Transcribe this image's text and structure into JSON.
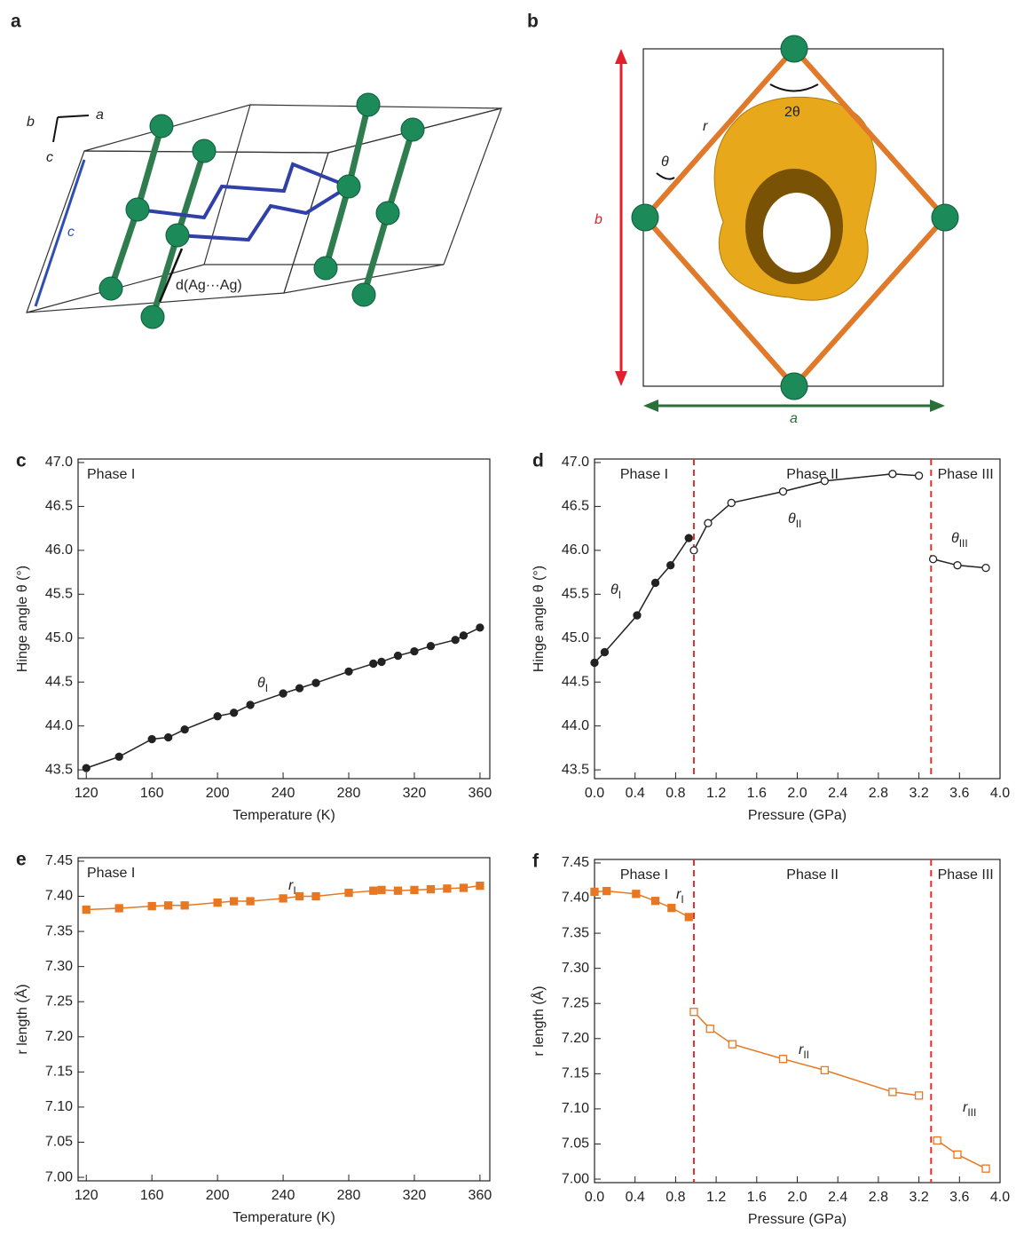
{
  "diagrams": {
    "a": {
      "panel": "a",
      "axis_labels": [
        "b",
        "a",
        "c"
      ],
      "c_label": "c",
      "distance_label": "d(Ag···Ag)"
    },
    "b": {
      "panel": "b",
      "r_label": "r",
      "theta_label": "θ",
      "two_theta_label": "2θ",
      "b_label": "b",
      "a_label": "a"
    }
  },
  "chart_data": [
    {
      "type": "line",
      "panel": "c",
      "x_label": "Temperature (K)",
      "y_label": "Hinge angle θ (°)",
      "xlim": [
        115,
        366
      ],
      "ylim": [
        43.4,
        47.04
      ],
      "xticks": [
        120,
        160,
        200,
        240,
        280,
        320,
        360
      ],
      "yticks": [
        43.5,
        {
          "value": 44,
          "label": "44.0"
        },
        44.5,
        {
          "value": 45,
          "label": "45.0"
        },
        45.5,
        {
          "value": 46,
          "label": "46.0"
        },
        46.5,
        {
          "value": 47,
          "label": "47.0"
        }
      ],
      "phase_labels": [
        "Phase I"
      ],
      "phase_boundaries": [],
      "annotations": [
        {
          "text": "θ",
          "sub": "I"
        }
      ],
      "series": [
        {
          "color": "#222222",
          "marker": "filled_circle",
          "x": [
            120,
            140,
            160,
            170,
            180,
            200,
            210,
            220,
            240,
            250,
            260,
            280,
            295,
            300,
            310,
            320,
            330,
            345,
            350,
            360
          ],
          "values": [
            43.52,
            43.65,
            43.85,
            43.87,
            43.96,
            44.11,
            44.15,
            44.24,
            44.37,
            44.43,
            44.49,
            44.62,
            44.71,
            44.73,
            44.8,
            44.85,
            44.91,
            44.98,
            45.03,
            45.12
          ]
        }
      ]
    },
    {
      "type": "line",
      "panel": "d",
      "x_label": "Pressure (GPa)",
      "y_label": "Hinge angle θ (°)",
      "xlim": [
        0,
        4
      ],
      "ylim": [
        43.4,
        47.04
      ],
      "xticks": [
        {
          "value": 0,
          "label": "0.0"
        },
        0.4,
        0.8,
        1.2,
        1.6,
        {
          "value": 2,
          "label": "2.0"
        },
        2.4,
        2.8,
        3.2,
        3.6,
        {
          "value": 4,
          "label": "4.0"
        }
      ],
      "yticks": [
        43.5,
        {
          "value": 44,
          "label": "44.0"
        },
        44.5,
        {
          "value": 45,
          "label": "45.0"
        },
        45.5,
        {
          "value": 46,
          "label": "46.0"
        },
        46.5,
        {
          "value": 47,
          "label": "47.0"
        }
      ],
      "phase_labels": [
        "Phase I",
        "Phase II",
        "Phase III"
      ],
      "phase_boundaries": [
        0.98,
        3.32
      ],
      "boundary_color": "#e0302f",
      "annotations": [
        {
          "text": "θ",
          "sub": "I"
        },
        {
          "text": "θ",
          "sub": "II"
        },
        {
          "text": "θ",
          "sub": "III"
        }
      ],
      "series": [
        {
          "color": "#222222",
          "marker": "filled_circle",
          "x": [
            0,
            0.1,
            0.42,
            0.6,
            0.75,
            0.93
          ],
          "values": [
            44.72,
            44.84,
            45.26,
            45.63,
            45.83,
            46.14
          ]
        },
        {
          "color": "#222222",
          "marker": "open_circle",
          "x": [
            0.98,
            1.12,
            1.35,
            1.86,
            2.27,
            2.94,
            3.2
          ],
          "values": [
            46.0,
            46.31,
            46.54,
            46.67,
            46.79,
            46.87,
            46.85
          ]
        },
        {
          "color": "#222222",
          "marker": "open_circle",
          "x": [
            3.34,
            3.58,
            3.86
          ],
          "values": [
            45.9,
            45.83,
            45.8
          ]
        }
      ]
    },
    {
      "type": "line",
      "panel": "e",
      "x_label": "Temperature (K)",
      "y_label": "r length (Å)",
      "xlim": [
        115,
        366
      ],
      "ylim": [
        6.995,
        7.455
      ],
      "xticks": [
        120,
        160,
        200,
        240,
        280,
        320,
        360
      ],
      "yticks": [
        {
          "value": 7,
          "label": "7.00"
        },
        7.05,
        {
          "value": 7.1,
          "label": "7.10"
        },
        7.15,
        {
          "value": 7.2,
          "label": "7.20"
        },
        7.25,
        {
          "value": 7.3,
          "label": "7.30"
        },
        7.35,
        {
          "value": 7.4,
          "label": "7.40"
        },
        7.45
      ],
      "phase_labels": [
        "Phase I"
      ],
      "phase_boundaries": [],
      "annotations": [
        {
          "text": "r",
          "sub": "I"
        }
      ],
      "series": [
        {
          "color": "#e87722",
          "marker": "filled_square",
          "x": [
            120,
            140,
            160,
            170,
            180,
            200,
            210,
            220,
            240,
            250,
            260,
            280,
            295,
            300,
            310,
            320,
            330,
            340,
            350,
            360
          ],
          "values": [
            7.381,
            7.383,
            7.386,
            7.387,
            7.387,
            7.391,
            7.393,
            7.393,
            7.397,
            7.4,
            7.4,
            7.405,
            7.408,
            7.409,
            7.408,
            7.409,
            7.41,
            7.411,
            7.412,
            7.415
          ]
        }
      ]
    },
    {
      "type": "line",
      "panel": "f",
      "x_label": "Pressure (GPa)",
      "y_label": "r length (Å)",
      "xlim": [
        0,
        4
      ],
      "ylim": [
        6.995,
        7.455
      ],
      "xticks": [
        {
          "value": 0,
          "label": "0.0"
        },
        0.4,
        0.8,
        1.2,
        1.6,
        {
          "value": 2,
          "label": "2.0"
        },
        2.4,
        2.8,
        3.2,
        3.6,
        {
          "value": 4,
          "label": "4.0"
        }
      ],
      "yticks": [
        {
          "value": 7,
          "label": "7.00"
        },
        7.05,
        {
          "value": 7.1,
          "label": "7.10"
        },
        7.15,
        {
          "value": 7.2,
          "label": "7.20"
        },
        7.25,
        {
          "value": 7.3,
          "label": "7.30"
        },
        7.35,
        {
          "value": 7.4,
          "label": "7.40"
        },
        7.45
      ],
      "phase_labels": [
        "Phase I",
        "Phase II",
        "Phase III"
      ],
      "phase_boundaries": [
        0.98,
        3.32
      ],
      "boundary_color": "#e0302f",
      "annotations": [
        {
          "text": "r",
          "sub": "I"
        },
        {
          "text": "r",
          "sub": "II"
        },
        {
          "text": "r",
          "sub": "III"
        }
      ],
      "series": [
        {
          "color": "#e87722",
          "marker": "filled_square",
          "x": [
            0,
            0.12,
            0.41,
            0.6,
            0.76,
            0.93
          ],
          "values": [
            7.409,
            7.41,
            7.406,
            7.396,
            7.386,
            7.373
          ]
        },
        {
          "color": "#e87722",
          "marker": "open_square",
          "x": [
            0.98,
            1.14,
            1.36,
            1.86,
            2.27,
            2.94,
            3.2
          ],
          "values": [
            7.238,
            7.214,
            7.192,
            7.171,
            7.155,
            7.124,
            7.119
          ]
        },
        {
          "color": "#e87722",
          "marker": "open_square",
          "x": [
            3.38,
            3.58,
            3.86
          ],
          "values": [
            7.055,
            7.035,
            7.015
          ]
        }
      ]
    }
  ]
}
